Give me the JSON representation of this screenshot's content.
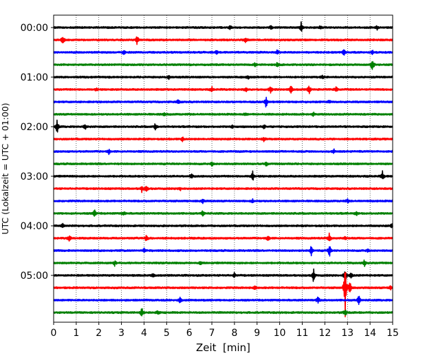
{
  "chart_data": {
    "type": "line",
    "chart_kind": "helicorder",
    "xlabel": "Zeit  [min]",
    "ylabel": "UTC (Lokalzeit = UTC + 01:00)",
    "xlim": [
      0,
      15
    ],
    "x_ticks": [
      0,
      1,
      2,
      3,
      4,
      5,
      6,
      7,
      8,
      9,
      10,
      11,
      12,
      13,
      14,
      15
    ],
    "x_tick_labels": [
      "0",
      "1",
      "2",
      "3",
      "4",
      "5",
      "6",
      "7",
      "8",
      "9",
      "10",
      "11",
      "12",
      "13",
      "14",
      "15"
    ],
    "y_tick_labels": [
      "00:00",
      "01:00",
      "02:00",
      "03:00",
      "04:00",
      "05:00"
    ],
    "grid": "vertical dotted",
    "legend": "none",
    "trace_minutes_per_row": 15,
    "trace_color_cycle": [
      "#000000",
      "#ff0000",
      "#0000ff",
      "#008000"
    ],
    "traces": [
      {
        "start": "00:00",
        "events": [
          [
            7.8,
            0.4
          ],
          [
            9.6,
            0.3
          ],
          [
            10.95,
            0.9
          ],
          [
            11.8,
            0.3
          ],
          [
            14.3,
            0.4
          ]
        ]
      },
      {
        "start": "00:15",
        "events": [
          [
            0.4,
            0.8
          ],
          [
            3.7,
            0.9
          ],
          [
            8.5,
            0.5
          ]
        ]
      },
      {
        "start": "00:30",
        "events": [
          [
            3.1,
            0.4
          ],
          [
            7.2,
            0.3
          ],
          [
            9.9,
            0.4
          ],
          [
            12.85,
            0.6
          ],
          [
            14.1,
            0.4
          ]
        ]
      },
      {
        "start": "00:45",
        "events": [
          [
            8.9,
            0.3
          ],
          [
            9.9,
            0.4
          ],
          [
            14.1,
            1.3
          ]
        ]
      },
      {
        "start": "01:00",
        "events": [
          [
            5.1,
            0.4
          ],
          [
            8.6,
            0.3
          ],
          [
            11.9,
            0.3
          ]
        ]
      },
      {
        "start": "01:15",
        "events": [
          [
            1.9,
            0.3
          ],
          [
            7.0,
            0.4
          ],
          [
            8.5,
            0.5
          ],
          [
            9.6,
            0.7
          ],
          [
            10.5,
            0.7
          ],
          [
            11.3,
            0.8
          ],
          [
            12.5,
            0.5
          ]
        ]
      },
      {
        "start": "01:30",
        "events": [
          [
            5.5,
            0.4
          ],
          [
            9.4,
            1.0
          ],
          [
            12.2,
            0.3
          ]
        ]
      },
      {
        "start": "01:45",
        "events": [
          [
            4.9,
            0.3
          ],
          [
            8.5,
            0.3
          ],
          [
            11.5,
            0.3
          ]
        ]
      },
      {
        "start": "02:00",
        "events": [
          [
            0.15,
            1.3
          ],
          [
            1.4,
            0.5
          ],
          [
            4.5,
            0.6
          ],
          [
            7.9,
            0.3
          ],
          [
            9.3,
            0.4
          ]
        ]
      },
      {
        "start": "02:15",
        "events": [
          [
            5.7,
            0.4
          ],
          [
            9.3,
            0.3
          ]
        ]
      },
      {
        "start": "02:30",
        "events": [
          [
            2.45,
            0.4
          ],
          [
            12.4,
            0.3
          ]
        ]
      },
      {
        "start": "02:45",
        "events": [
          [
            7.0,
            0.5
          ],
          [
            9.4,
            0.4
          ]
        ]
      },
      {
        "start": "03:00",
        "events": [
          [
            6.1,
            0.4
          ],
          [
            8.8,
            1.0
          ],
          [
            14.55,
            0.8
          ]
        ]
      },
      {
        "start": "03:15",
        "events": [
          [
            3.9,
            0.5
          ],
          [
            4.1,
            0.6
          ],
          [
            5.6,
            0.3
          ]
        ]
      },
      {
        "start": "03:30",
        "events": [
          [
            6.6,
            0.4
          ],
          [
            8.8,
            0.3
          ],
          [
            13.0,
            0.3
          ]
        ]
      },
      {
        "start": "03:45",
        "events": [
          [
            1.8,
            0.8
          ],
          [
            3.1,
            0.4
          ],
          [
            6.6,
            0.6
          ],
          [
            13.4,
            0.3
          ]
        ]
      },
      {
        "start": "04:00",
        "events": [
          [
            0.4,
            0.3
          ],
          [
            14.95,
            0.4
          ]
        ]
      },
      {
        "start": "04:15",
        "events": [
          [
            0.7,
            0.6
          ],
          [
            4.1,
            0.7
          ],
          [
            9.5,
            0.5
          ],
          [
            12.2,
            0.9
          ],
          [
            12.9,
            0.3
          ]
        ]
      },
      {
        "start": "04:30",
        "events": [
          [
            4.0,
            0.4
          ],
          [
            11.4,
            0.9
          ],
          [
            12.2,
            1.2
          ],
          [
            13.9,
            0.4
          ]
        ]
      },
      {
        "start": "04:45",
        "events": [
          [
            2.7,
            0.4
          ],
          [
            6.5,
            0.3
          ],
          [
            13.75,
            0.7
          ]
        ]
      },
      {
        "start": "05:00",
        "events": [
          [
            4.4,
            0.4
          ],
          [
            8.0,
            0.4
          ],
          [
            11.5,
            1.3
          ],
          [
            12.9,
            1.5
          ],
          [
            13.15,
            0.6
          ]
        ]
      },
      {
        "start": "05:15",
        "events": [
          [
            8.9,
            0.3
          ],
          [
            12.9,
            5.0
          ],
          [
            13.1,
            1.5
          ],
          [
            14.9,
            0.4
          ]
        ]
      },
      {
        "start": "05:30",
        "events": [
          [
            5.6,
            0.7
          ],
          [
            11.7,
            0.7
          ],
          [
            13.5,
            1.0
          ]
        ]
      },
      {
        "start": "05:45",
        "events": [
          [
            3.9,
            1.0
          ],
          [
            4.6,
            0.3
          ],
          [
            12.9,
            0.6
          ]
        ]
      }
    ]
  }
}
